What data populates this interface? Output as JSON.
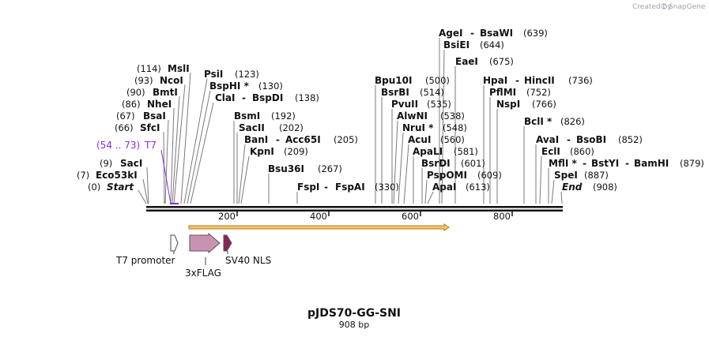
{
  "map_title": "pJDS70-GG-SNI",
  "map_length": "908 bp",
  "credit": {
    "created_by": "Created by",
    "brand": "SnapGene"
  },
  "ruler_ticks": [
    "200",
    "400",
    "600",
    "800"
  ],
  "primer_binding": {
    "range_label": "(54 .. 73)",
    "name": "T7",
    "color": "#8a2be2"
  },
  "sites": [
    {
      "id": "start",
      "pos": "(0)",
      "name": "Start",
      "italic": true
    },
    {
      "id": "eco53ki",
      "pos": "(7)",
      "name": "Eco53kI"
    },
    {
      "id": "saci",
      "pos": "(9)",
      "name": "SacI"
    },
    {
      "id": "sfci",
      "pos": "(66)",
      "name": "SfcI"
    },
    {
      "id": "bsai",
      "pos": "(67)",
      "name": "BsaI"
    },
    {
      "id": "nhei",
      "pos": "(86)",
      "name": "NheI"
    },
    {
      "id": "bmti",
      "pos": "(90)",
      "name": "BmtI"
    },
    {
      "id": "ncoi",
      "pos": "(93)",
      "name": "NcoI"
    },
    {
      "id": "msli",
      "pos": "(114)",
      "name": "MslI"
    },
    {
      "id": "psii",
      "name": "PsiI",
      "pos": "(123)"
    },
    {
      "id": "bsphi",
      "name": "BspHI *",
      "pos": "(130)"
    },
    {
      "id": "clai",
      "name": "ClaI",
      "name2": "BspDI",
      "pos": "(138)"
    },
    {
      "id": "bsmi",
      "name": "BsmI",
      "pos": "(192)"
    },
    {
      "id": "sacii",
      "name": "SacII",
      "pos": "(202)"
    },
    {
      "id": "bani",
      "name": "BanI",
      "name2": "Acc65I",
      "pos": "(205)"
    },
    {
      "id": "kpni",
      "name": "KpnI",
      "pos": "(209)"
    },
    {
      "id": "bsu36i",
      "name": "Bsu36I",
      "pos": "(267)"
    },
    {
      "id": "fspi",
      "name": "FspI",
      "name2": "FspAI",
      "pos": "(330)"
    },
    {
      "id": "bpu10i",
      "name": "Bpu10I",
      "pos": "(500)"
    },
    {
      "id": "bsrbi",
      "name": "BsrBI",
      "pos": "(514)"
    },
    {
      "id": "pvuii",
      "name": "PvuII",
      "pos": "(535)"
    },
    {
      "id": "alwni",
      "name": "AlwNI",
      "pos": "(538)"
    },
    {
      "id": "nrui",
      "name": "NruI *",
      "pos": "(548)"
    },
    {
      "id": "acui",
      "name": "AcuI",
      "pos": "(560)"
    },
    {
      "id": "apali",
      "name": "ApaLI",
      "pos": "(581)"
    },
    {
      "id": "bsrdi",
      "name": "BsrDI",
      "pos": "(601)"
    },
    {
      "id": "pspomi",
      "name": "PspOMI",
      "pos": "(609)"
    },
    {
      "id": "apai",
      "name": "ApaI",
      "pos": "(613)"
    },
    {
      "id": "agei",
      "name": "AgeI",
      "name2": "BsaWI",
      "pos": "(639)"
    },
    {
      "id": "bsiei",
      "name": "BsiEI",
      "pos": "(644)"
    },
    {
      "id": "eaei",
      "name": "EaeI",
      "pos": "(675)"
    },
    {
      "id": "hpai",
      "name": "HpaI",
      "name2": "HincII",
      "pos": "(736)"
    },
    {
      "id": "pflmi",
      "name": "PflMI",
      "pos": "(752)"
    },
    {
      "id": "nspi",
      "name": "NspI",
      "pos": "(766)"
    },
    {
      "id": "bcli",
      "name": "BclI *",
      "pos": "(826)"
    },
    {
      "id": "avai",
      "name": "AvaI",
      "name2": "BsoBI",
      "pos": "(852)"
    },
    {
      "id": "ecli",
      "name": "EclI",
      "pos": "(860)"
    },
    {
      "id": "mfli",
      "name": "MflI *",
      "name2": "BstYI",
      "name3": "BamHI",
      "pos": "(879)"
    },
    {
      "id": "spei",
      "name": "SpeI",
      "pos": "(887)"
    },
    {
      "id": "end",
      "name": "End",
      "pos": "(908)",
      "italic": true
    }
  ],
  "features": [
    {
      "id": "t7-promoter",
      "label": "T7 promoter",
      "color": "#ffffff"
    },
    {
      "id": "3xflag",
      "label": "3xFLAG",
      "color": "#c893b2"
    },
    {
      "id": "sv40-nls",
      "label": "SV40 NLS",
      "color": "#8a2457"
    }
  ],
  "orf": {
    "color": "#f5c96a",
    "outline": "#b07a20"
  }
}
